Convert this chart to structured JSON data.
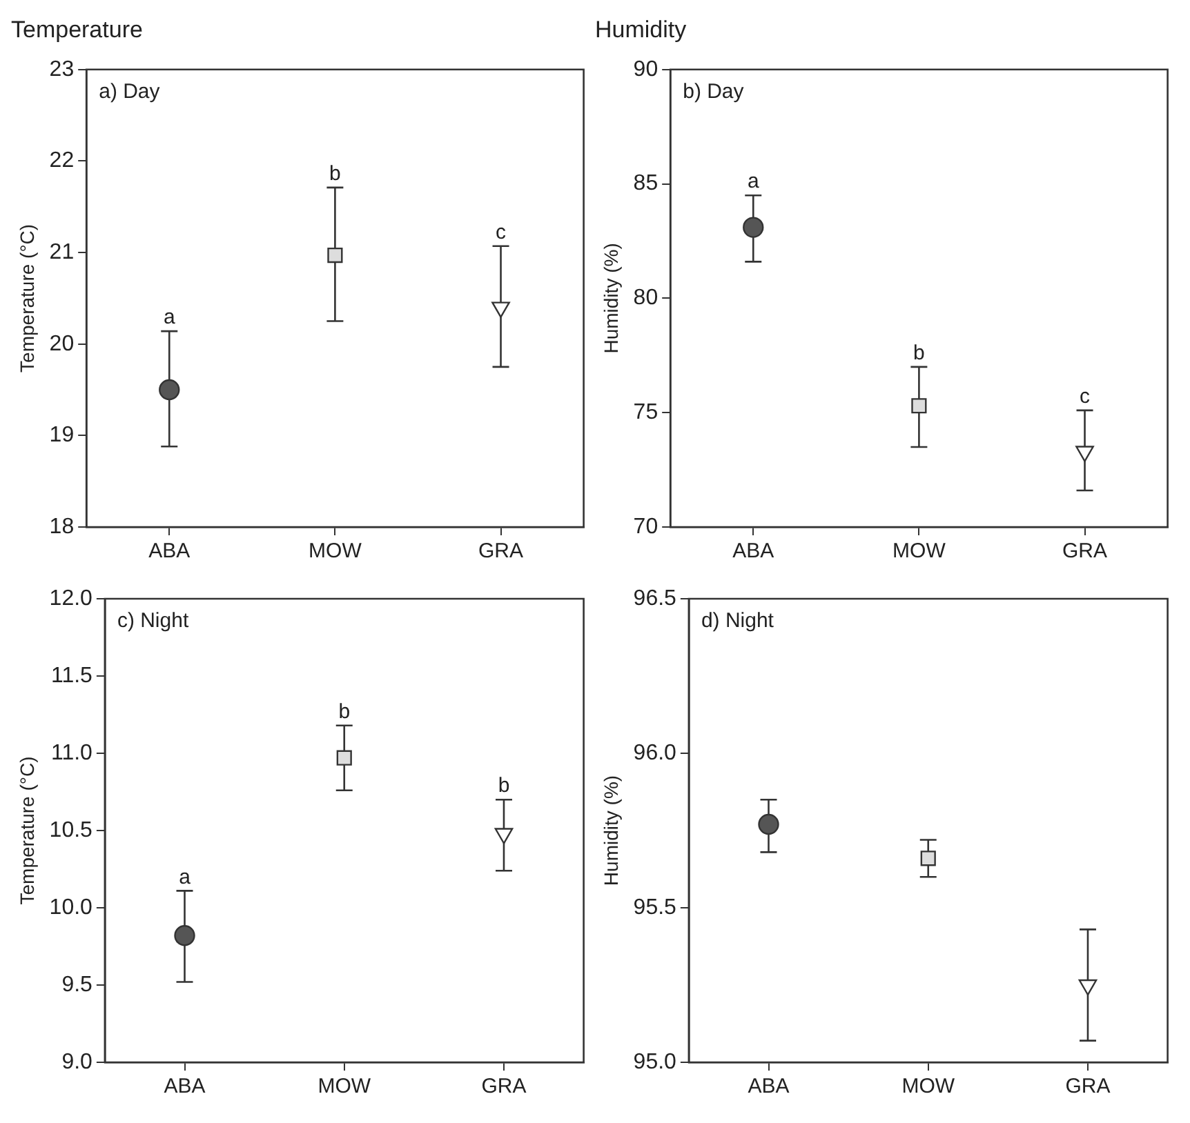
{
  "chart_data": [
    {
      "type": "scatter",
      "title": "Temperature",
      "ylabel": "Temperature (°C)",
      "categories": [
        "ABA",
        "MOW",
        "GRA"
      ],
      "ylim": [
        18,
        23
      ],
      "yticks": [
        18,
        19,
        20,
        21,
        22,
        23
      ],
      "grid": false,
      "annotations": [
        "a) Day",
        {
          "text": "a",
          "x": "ABA",
          "y": 20.14
        },
        {
          "text": "b",
          "x": "MOW",
          "y": 21.71
        },
        {
          "text": "c",
          "x": "GRA",
          "y": 21.07
        }
      ],
      "series": [
        {
          "x": [
            "ABA"
          ],
          "values": [
            19.5
          ],
          "errors": [
            [
              18.88,
              20.14
            ]
          ],
          "color": "#555555",
          "marker": "circle"
        },
        {
          "x": [
            "MOW"
          ],
          "values": [
            20.97
          ],
          "errors": [
            [
              20.25,
              21.71
            ]
          ],
          "color": "#dddddd",
          "marker": "square"
        },
        {
          "x": [
            "GRA"
          ],
          "values": [
            20.4
          ],
          "errors": [
            [
              19.75,
              21.07
            ]
          ],
          "color": "#ffffff",
          "marker": "triangle"
        }
      ]
    },
    {
      "type": "scatter",
      "title": "Humidity",
      "ylabel": "Humidity (%)",
      "categories": [
        "ABA",
        "MOW",
        "GRA"
      ],
      "ylim": [
        70,
        90
      ],
      "yticks": [
        70,
        75,
        80,
        85,
        90
      ],
      "grid": false,
      "annotations": [
        "b) Day",
        {
          "text": "a",
          "x": "ABA",
          "y": 84.5
        },
        {
          "text": "b",
          "x": "MOW",
          "y": 77.0
        },
        {
          "text": "c",
          "x": "GRA",
          "y": 75.1
        }
      ],
      "series": [
        {
          "x": [
            "ABA"
          ],
          "values": [
            83.1
          ],
          "errors": [
            [
              81.6,
              84.5
            ]
          ],
          "color": "#555555",
          "marker": "circle"
        },
        {
          "x": [
            "MOW"
          ],
          "values": [
            75.3
          ],
          "errors": [
            [
              73.5,
              77.0
            ]
          ],
          "color": "#dddddd",
          "marker": "square"
        },
        {
          "x": [
            "GRA"
          ],
          "values": [
            73.3
          ],
          "errors": [
            [
              71.6,
              75.1
            ]
          ],
          "color": "#ffffff",
          "marker": "triangle"
        }
      ]
    },
    {
      "type": "scatter",
      "ylabel": "Temperature (°C)",
      "categories": [
        "ABA",
        "MOW",
        "GRA"
      ],
      "ylim": [
        9,
        12
      ],
      "yticks": [
        {
          "value": 9,
          "label": "9.0"
        },
        9.5,
        {
          "value": 10,
          "label": "10.0"
        },
        10.5,
        {
          "value": 11,
          "label": "11.0"
        },
        11.5,
        {
          "value": 12,
          "label": "12.0"
        }
      ],
      "grid": false,
      "annotations": [
        "c) Night",
        {
          "text": "a",
          "x": "ABA",
          "y": 10.11
        },
        {
          "text": "b",
          "x": "MOW",
          "y": 11.18
        },
        {
          "text": "b",
          "x": "GRA",
          "y": 10.7
        }
      ],
      "series": [
        {
          "x": [
            "ABA"
          ],
          "values": [
            9.82
          ],
          "errors": [
            [
              9.52,
              10.11
            ]
          ],
          "color": "#555555",
          "marker": "circle"
        },
        {
          "x": [
            "MOW"
          ],
          "values": [
            10.97
          ],
          "errors": [
            [
              10.76,
              11.18
            ]
          ],
          "color": "#dddddd",
          "marker": "square"
        },
        {
          "x": [
            "GRA"
          ],
          "values": [
            10.48
          ],
          "errors": [
            [
              10.24,
              10.7
            ]
          ],
          "color": "#ffffff",
          "marker": "triangle"
        }
      ]
    },
    {
      "type": "scatter",
      "ylabel": "Humidity (%)",
      "categories": [
        "ABA",
        "MOW",
        "GRA"
      ],
      "ylim": [
        95,
        96.5
      ],
      "yticks": [
        {
          "value": 95,
          "label": "95.0"
        },
        95.5,
        {
          "value": 96,
          "label": "96.0"
        },
        96.5
      ],
      "grid": false,
      "annotations": [
        "d) Night"
      ],
      "series": [
        {
          "x": [
            "ABA"
          ],
          "values": [
            95.77
          ],
          "errors": [
            [
              95.68,
              95.85
            ]
          ],
          "color": "#555555",
          "marker": "circle"
        },
        {
          "x": [
            "MOW"
          ],
          "values": [
            95.66
          ],
          "errors": [
            [
              95.6,
              95.72
            ]
          ],
          "color": "#dddddd",
          "marker": "square"
        },
        {
          "x": [
            "GRA"
          ],
          "values": [
            95.25
          ],
          "errors": [
            [
              95.07,
              95.43
            ]
          ],
          "color": "#ffffff",
          "marker": "triangle"
        }
      ]
    }
  ]
}
